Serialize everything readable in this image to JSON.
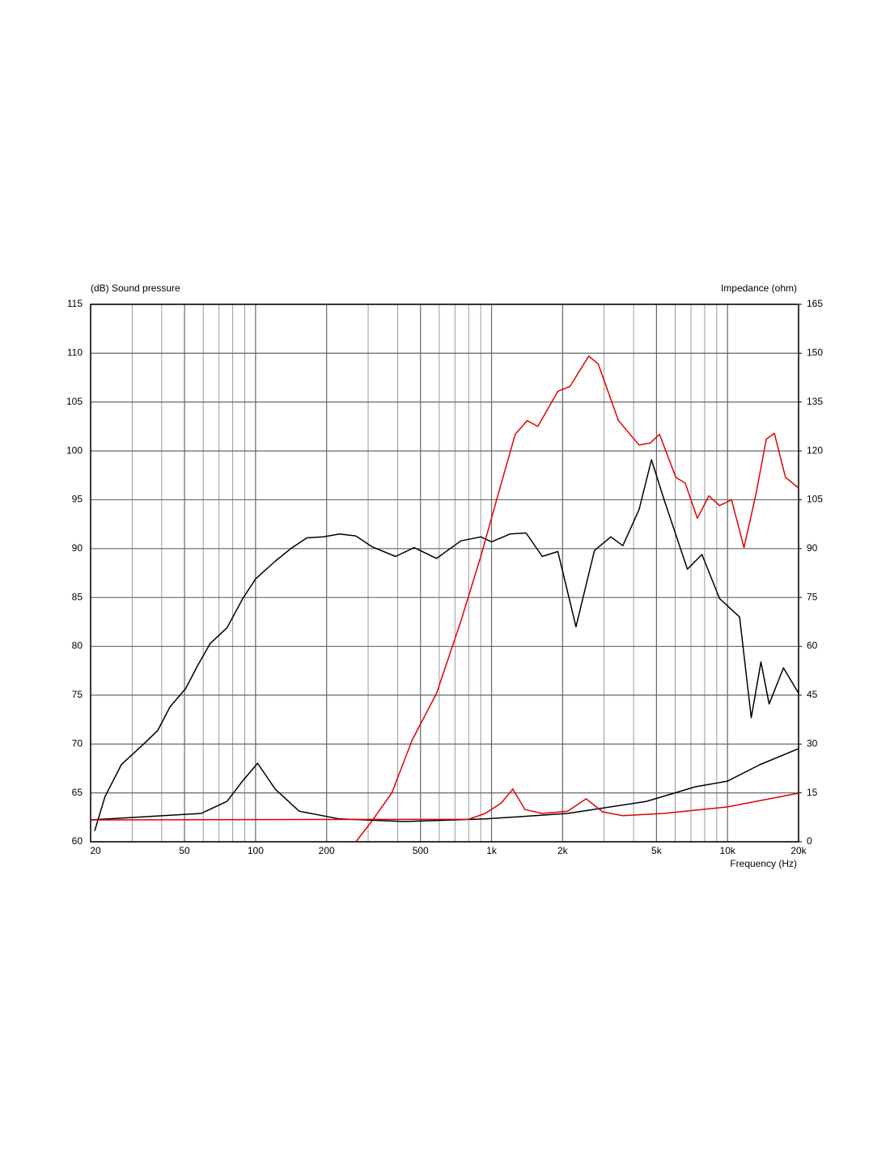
{
  "chart_data": {
    "type": "line",
    "y_label": "(dB)  Sound pressure",
    "y2_label": "Impedance  (ohm)",
    "x_label": "Frequency  (Hz)",
    "xscale": "log",
    "xlim": [
      20,
      20000
    ],
    "xticks": [
      20,
      50,
      100,
      200,
      500,
      {
        "value": 1000,
        "label": "1k"
      },
      {
        "value": 2000,
        "label": "2k"
      },
      {
        "value": 5000,
        "label": "5k"
      },
      {
        "value": 10000,
        "label": "10k"
      },
      {
        "value": 20000,
        "label": "20k"
      }
    ],
    "xminor": [
      30,
      40,
      60,
      70,
      80,
      90,
      300,
      400,
      600,
      700,
      800,
      900,
      3000,
      4000,
      6000,
      7000,
      8000,
      9000
    ],
    "ylim": [
      60,
      115
    ],
    "yticks": [
      60,
      65,
      70,
      75,
      80,
      85,
      90,
      95,
      100,
      105,
      110,
      115
    ],
    "y2lim": [
      0,
      165
    ],
    "y2ticks": [
      0,
      15,
      30,
      45,
      60,
      75,
      90,
      105,
      120,
      135,
      150,
      165
    ],
    "grid": true,
    "series": [
      {
        "color": "#000000",
        "x": [
          20.8,
          23,
          27,
          32.9,
          38.5,
          43.4,
          50.6,
          57,
          64.3,
          75.7,
          88.3,
          100,
          121,
          141,
          165,
          194,
          227,
          266,
          311,
          392,
          470,
          585,
          742,
          900,
          1000,
          1200,
          1400,
          1640,
          1910,
          2280,
          2730,
          3200,
          3600,
          4220,
          4760,
          5350,
          6760,
          7790,
          9250,
          11250,
          12600,
          13850,
          15000,
          17250,
          20000
        ],
        "values": [
          61.1,
          64.6,
          67.9,
          69.8,
          71.4,
          73.8,
          75.7,
          78.1,
          80.3,
          81.9,
          84.9,
          86.9,
          88.7,
          90,
          91.1,
          91.2,
          91.5,
          91.3,
          90.2,
          89.2,
          90.1,
          89,
          90.8,
          91.2,
          90.7,
          91.5,
          91.6,
          89.2,
          89.7,
          82,
          89.8,
          91.2,
          90.3,
          94,
          99.1,
          95.2,
          87.9,
          89.4,
          84.9,
          83,
          72.7,
          78.4,
          74.1,
          77.8,
          75.2
        ]
      },
      {
        "color": "#e00000",
        "x": [
          266,
          311,
          378,
          461,
          585,
          742,
          900,
          1100,
          1260,
          1415,
          1570,
          1910,
          2150,
          2580,
          2830,
          3450,
          4220,
          4700,
          5150,
          6040,
          6620,
          7450,
          8330,
          9250,
          10400,
          11740,
          13200,
          14600,
          15800,
          17600,
          20000
        ],
        "values": [
          60,
          62.1,
          65,
          70.4,
          75.2,
          82.6,
          89.2,
          96.7,
          101.7,
          103.1,
          102.5,
          106.1,
          106.6,
          109.7,
          108.9,
          103.1,
          100.6,
          100.8,
          101.7,
          97.3,
          96.7,
          93.1,
          95.4,
          94.4,
          95,
          90.1,
          95.6,
          101.2,
          101.8,
          97.3,
          96.2
        ]
      },
      {
        "color": "#000000",
        "axis": "y2",
        "x": [
          20,
          58.8,
          75.7,
          88,
          102,
          121,
          153,
          227,
          428,
          940,
          2100,
          4530,
          7320,
          10000,
          13650,
          20000
        ],
        "values": [
          6.7,
          8.7,
          12.4,
          18.6,
          24.1,
          16.2,
          9.4,
          7,
          6.2,
          7,
          8.7,
          12.4,
          16.9,
          18.6,
          23.6,
          28.6
        ]
      },
      {
        "color": "#e00000",
        "axis": "y2",
        "x": [
          20,
          800,
          940,
          1100,
          1230,
          1385,
          1640,
          2100,
          2520,
          2950,
          3600,
          5350,
          10000,
          20000
        ],
        "values": [
          6.7,
          6.9,
          8.7,
          11.9,
          16.2,
          9.9,
          8.7,
          9.4,
          13.2,
          9.2,
          8,
          8.7,
          10.7,
          14.9
        ]
      }
    ]
  }
}
